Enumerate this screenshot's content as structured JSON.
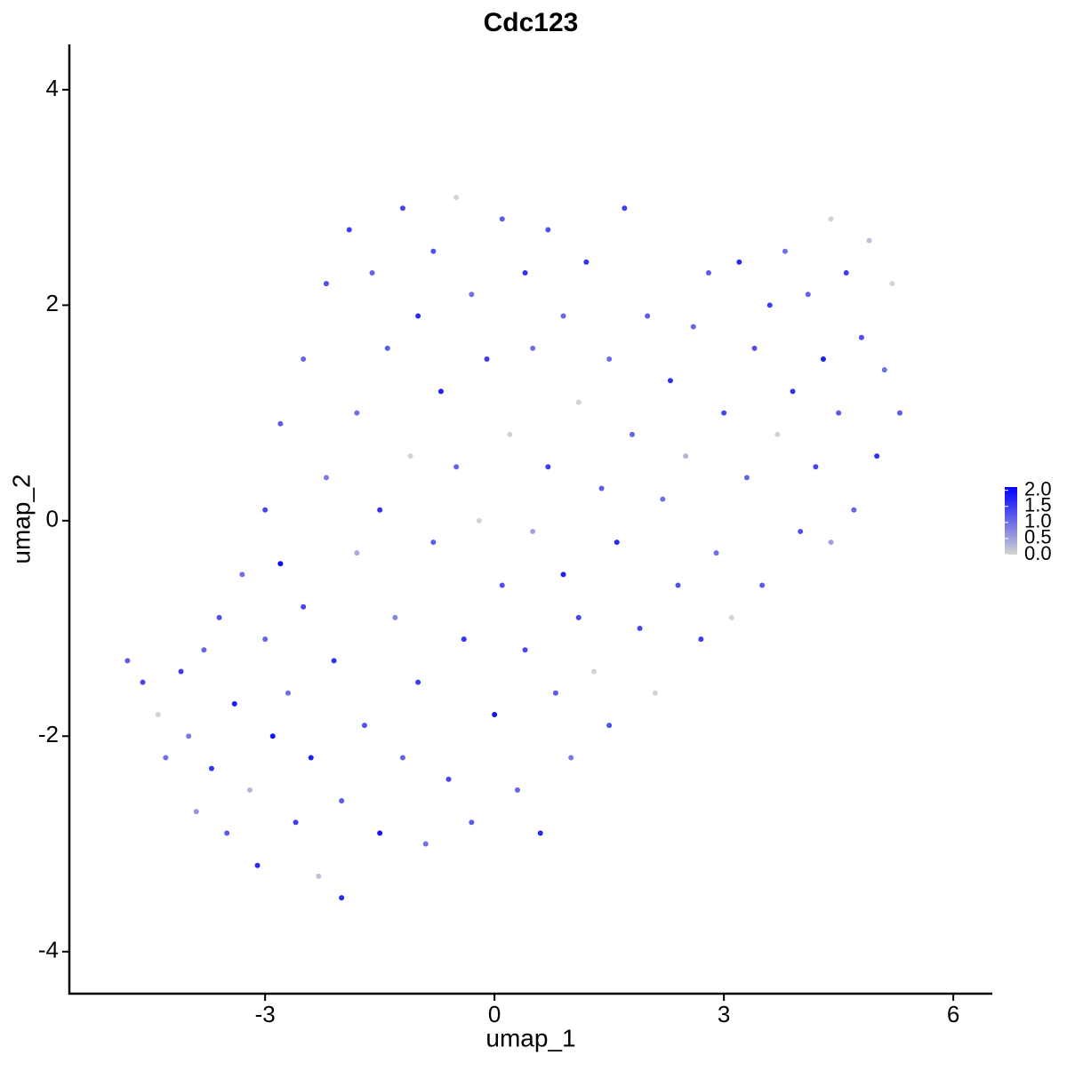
{
  "chart_data": {
    "type": "scatter",
    "title": "Cdc123",
    "x_label": "umap_1",
    "y_label": "umap_2",
    "xlim": [
      -5.56,
      6.51
    ],
    "ylim": [
      -4.39,
      4.42
    ],
    "xticks": [
      -3,
      0,
      3,
      6
    ],
    "yticks": [
      -4,
      -2,
      0,
      2,
      4
    ],
    "color_low": "#d3d3d3",
    "color_high": "#0000ff",
    "colorlim": [
      0,
      2.1
    ],
    "color_ticks": [
      {
        "value": 0,
        "label": "0.0"
      },
      {
        "value": 0.5,
        "label": "0.5"
      },
      {
        "value": 1,
        "label": "1.0"
      },
      {
        "value": 1.5,
        "label": "1.5"
      },
      {
        "value": 2,
        "label": "2.0"
      }
    ],
    "x": [
      -4.8,
      -4.6,
      -4.4,
      -4.3,
      -4.1,
      -4.0,
      -3.9,
      -3.8,
      -3.7,
      -3.6,
      -3.5,
      -3.4,
      -3.3,
      -3.2,
      -3.1,
      -3.0,
      -3.0,
      -2.9,
      -2.8,
      -2.8,
      -2.7,
      -2.6,
      -2.5,
      -2.5,
      -2.4,
      -2.3,
      -2.2,
      -2.2,
      -2.1,
      -2.0,
      -2.0,
      -1.9,
      -1.8,
      -1.8,
      -1.7,
      -1.6,
      -1.5,
      -1.5,
      -1.4,
      -1.3,
      -1.2,
      -1.2,
      -1.1,
      -1.0,
      -1.0,
      -0.9,
      -0.8,
      -0.8,
      -0.7,
      -0.6,
      -0.5,
      -0.5,
      -0.4,
      -0.3,
      -0.3,
      -0.2,
      -0.1,
      0.0,
      0.1,
      0.1,
      0.2,
      0.3,
      0.4,
      0.4,
      0.5,
      0.5,
      0.6,
      0.7,
      0.7,
      0.8,
      0.9,
      0.9,
      1.0,
      1.1,
      1.1,
      1.2,
      1.3,
      1.4,
      1.5,
      1.5,
      1.6,
      1.7,
      1.8,
      1.9,
      2.0,
      2.1,
      2.2,
      2.3,
      2.4,
      2.5,
      2.6,
      2.7,
      2.8,
      2.9,
      3.0,
      3.1,
      3.2,
      3.3,
      3.4,
      3.5,
      3.6,
      3.7,
      3.8,
      3.9,
      4.0,
      4.1,
      4.2,
      4.3,
      4.4,
      4.4,
      4.5,
      4.6,
      4.7,
      4.8,
      4.9,
      5.0,
      5.1,
      5.2,
      5.3
    ],
    "y": [
      -1.3,
      -1.5,
      -1.8,
      -2.2,
      -1.4,
      -2.0,
      -2.7,
      -1.2,
      -2.3,
      -0.9,
      -2.9,
      -1.7,
      -0.5,
      -2.5,
      -3.2,
      0.1,
      -1.1,
      -2.0,
      0.9,
      -0.4,
      -1.6,
      -2.8,
      1.5,
      -0.8,
      -2.2,
      -3.3,
      2.2,
      0.4,
      -1.3,
      -2.6,
      -3.5,
      2.7,
      1.0,
      -0.3,
      -1.9,
      2.3,
      0.1,
      -2.9,
      1.6,
      -0.9,
      2.9,
      -2.2,
      0.6,
      1.9,
      -1.5,
      -3.0,
      2.5,
      -0.2,
      1.2,
      -2.4,
      3.0,
      0.5,
      -1.1,
      2.1,
      -2.8,
      0.0,
      1.5,
      -1.8,
      2.8,
      -0.6,
      0.8,
      -2.5,
      2.3,
      -1.2,
      1.6,
      -0.1,
      -2.9,
      2.7,
      0.5,
      -1.6,
      -0.5,
      1.9,
      -2.2,
      1.1,
      -0.9,
      2.4,
      -1.4,
      0.3,
      1.5,
      -1.9,
      -0.2,
      2.9,
      0.8,
      -1.0,
      1.9,
      -1.6,
      0.2,
      1.3,
      -0.6,
      0.6,
      1.8,
      -1.1,
      2.3,
      -0.3,
      1.0,
      -0.9,
      2.4,
      0.4,
      1.6,
      -0.6,
      2.0,
      0.8,
      2.5,
      1.2,
      -0.1,
      2.1,
      0.5,
      1.5,
      2.8,
      -0.2,
      1.0,
      2.3,
      0.1,
      1.7,
      2.6,
      0.6,
      1.4,
      2.2,
      1.0
    ],
    "values": [
      1.2,
      1.4,
      0,
      1.0,
      1.5,
      0.9,
      0.6,
      1.1,
      1.6,
      1.3,
      1.2,
      1.8,
      1.0,
      0.3,
      1.7,
      1.4,
      1.1,
      1.9,
      1.2,
      2.0,
      1.0,
      1.5,
      1.1,
      1.4,
      1.8,
      0.2,
      1.3,
      0.9,
      1.6,
      1.2,
      1.7,
      1.5,
      1.0,
      0.4,
      1.3,
      1.1,
      1.6,
      1.9,
      1.2,
      0.8,
      1.4,
      1.1,
      0,
      1.7,
      1.5,
      1.0,
      1.3,
      1.2,
      1.8,
      1.4,
      0,
      1.1,
      1.6,
      1.0,
      1.2,
      0,
      1.5,
      1.9,
      1.2,
      1.3,
      0,
      1.1,
      1.6,
      1.4,
      1.0,
      0.5,
      1.7,
      1.3,
      1.5,
      1.2,
      1.8,
      1.1,
      0.9,
      0,
      1.4,
      1.6,
      0,
      1.2,
      1.0,
      1.3,
      1.7,
      1.5,
      1.1,
      1.4,
      1.2,
      0,
      1.0,
      1.6,
      1.3,
      0.3,
      1.1,
      1.5,
      1.2,
      1.0,
      1.4,
      0,
      1.7,
      1.1,
      1.3,
      1.2,
      1.5,
      0,
      1.0,
      1.6,
      1.3,
      1.1,
      1.4,
      1.8,
      0,
      0.5,
      1.2,
      1.5,
      1.1,
      1.3,
      0.2,
      1.6,
      1.0,
      0,
      1.2
    ]
  }
}
